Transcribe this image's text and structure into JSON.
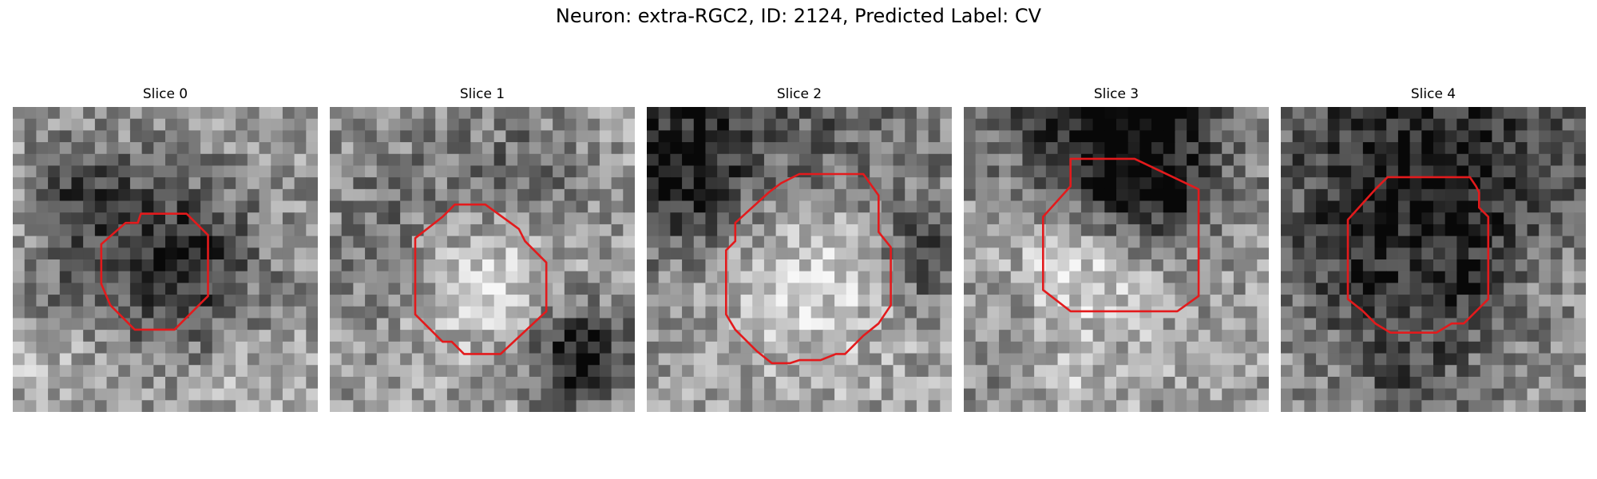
{
  "figure": {
    "title": "Neuron: extra-RGC2, ID: 2124, Predicted Label: CV",
    "contour_color": "#e31a1c",
    "panels": [
      {
        "title": "Slice 0",
        "contour": [
          [
            0.42,
            0.35
          ],
          [
            0.57,
            0.35
          ],
          [
            0.64,
            0.42
          ],
          [
            0.64,
            0.62
          ],
          [
            0.53,
            0.73
          ],
          [
            0.4,
            0.73
          ],
          [
            0.32,
            0.65
          ],
          [
            0.29,
            0.58
          ],
          [
            0.29,
            0.45
          ],
          [
            0.37,
            0.38
          ],
          [
            0.41,
            0.38
          ]
        ],
        "dark_spots": [
          [
            0.5,
            0.52,
            0.22,
            0.9
          ],
          [
            0.22,
            0.27,
            0.12,
            0.5
          ],
          [
            0.14,
            0.62,
            0.1,
            0.3
          ]
        ],
        "bright_spots": [
          [
            0.15,
            0.72,
            0.18,
            0.4
          ],
          [
            0.75,
            0.88,
            0.15,
            0.3
          ]
        ],
        "seed": 11
      },
      {
        "title": "Slice 1",
        "contour": [
          [
            0.41,
            0.32
          ],
          [
            0.51,
            0.32
          ],
          [
            0.62,
            0.4
          ],
          [
            0.64,
            0.44
          ],
          [
            0.71,
            0.51
          ],
          [
            0.71,
            0.67
          ],
          [
            0.56,
            0.81
          ],
          [
            0.44,
            0.81
          ],
          [
            0.4,
            0.77
          ],
          [
            0.37,
            0.77
          ],
          [
            0.28,
            0.68
          ],
          [
            0.28,
            0.43
          ],
          [
            0.37,
            0.36
          ]
        ],
        "dark_spots": [
          [
            0.82,
            0.82,
            0.12,
            1.0
          ],
          [
            0.3,
            0.4,
            0.25,
            0.4
          ],
          [
            0.65,
            0.22,
            0.15,
            0.3
          ]
        ],
        "bright_spots": [
          [
            0.5,
            0.55,
            0.17,
            1.0
          ]
        ],
        "seed": 23
      },
      {
        "title": "Slice 2",
        "contour": [
          [
            0.44,
            0.25
          ],
          [
            0.5,
            0.22
          ],
          [
            0.71,
            0.22
          ],
          [
            0.76,
            0.29
          ],
          [
            0.76,
            0.41
          ],
          [
            0.8,
            0.46
          ],
          [
            0.8,
            0.65
          ],
          [
            0.76,
            0.71
          ],
          [
            0.71,
            0.75
          ],
          [
            0.65,
            0.81
          ],
          [
            0.62,
            0.81
          ],
          [
            0.57,
            0.83
          ],
          [
            0.5,
            0.83
          ],
          [
            0.47,
            0.84
          ],
          [
            0.41,
            0.84
          ],
          [
            0.36,
            0.8
          ],
          [
            0.29,
            0.73
          ],
          [
            0.26,
            0.68
          ],
          [
            0.26,
            0.47
          ],
          [
            0.29,
            0.44
          ],
          [
            0.29,
            0.38
          ],
          [
            0.4,
            0.28
          ]
        ],
        "dark_spots": [
          [
            0.05,
            0.2,
            0.18,
            0.8
          ],
          [
            0.5,
            0.12,
            0.4,
            0.5
          ],
          [
            0.9,
            0.5,
            0.1,
            0.6
          ]
        ],
        "bright_spots": [
          [
            0.53,
            0.55,
            0.22,
            1.0
          ]
        ],
        "seed": 37
      },
      {
        "title": "Slice 3",
        "contour": [
          [
            0.35,
            0.17
          ],
          [
            0.56,
            0.17
          ],
          [
            0.77,
            0.27
          ],
          [
            0.77,
            0.62
          ],
          [
            0.7,
            0.67
          ],
          [
            0.68,
            0.67
          ],
          [
            0.35,
            0.67
          ],
          [
            0.26,
            0.6
          ],
          [
            0.26,
            0.36
          ],
          [
            0.35,
            0.26
          ]
        ],
        "dark_spots": [
          [
            0.5,
            0.03,
            0.3,
            0.9
          ],
          [
            0.55,
            0.27,
            0.15,
            0.7
          ],
          [
            0.15,
            0.8,
            0.12,
            0.3
          ]
        ],
        "bright_spots": [
          [
            0.4,
            0.5,
            0.18,
            1.0
          ],
          [
            0.35,
            0.93,
            0.1,
            0.4
          ]
        ],
        "seed": 49
      },
      {
        "title": "Slice 4",
        "contour": [
          [
            0.35,
            0.23
          ],
          [
            0.62,
            0.23
          ],
          [
            0.64,
            0.26
          ],
          [
            0.65,
            0.28
          ],
          [
            0.65,
            0.33
          ],
          [
            0.68,
            0.36
          ],
          [
            0.68,
            0.63
          ],
          [
            0.6,
            0.71
          ],
          [
            0.56,
            0.71
          ],
          [
            0.51,
            0.74
          ],
          [
            0.36,
            0.74
          ],
          [
            0.31,
            0.71
          ],
          [
            0.27,
            0.67
          ],
          [
            0.22,
            0.63
          ],
          [
            0.22,
            0.37
          ],
          [
            0.31,
            0.27
          ]
        ],
        "dark_spots": [
          [
            0.5,
            0.12,
            0.45,
            0.8
          ],
          [
            0.45,
            0.5,
            0.22,
            0.6
          ],
          [
            0.42,
            0.95,
            0.1,
            0.4
          ]
        ],
        "bright_spots": [
          [
            0.45,
            0.48,
            0.12,
            0.6
          ],
          [
            0.85,
            0.55,
            0.12,
            0.4
          ]
        ],
        "seed": 61
      }
    ]
  }
}
